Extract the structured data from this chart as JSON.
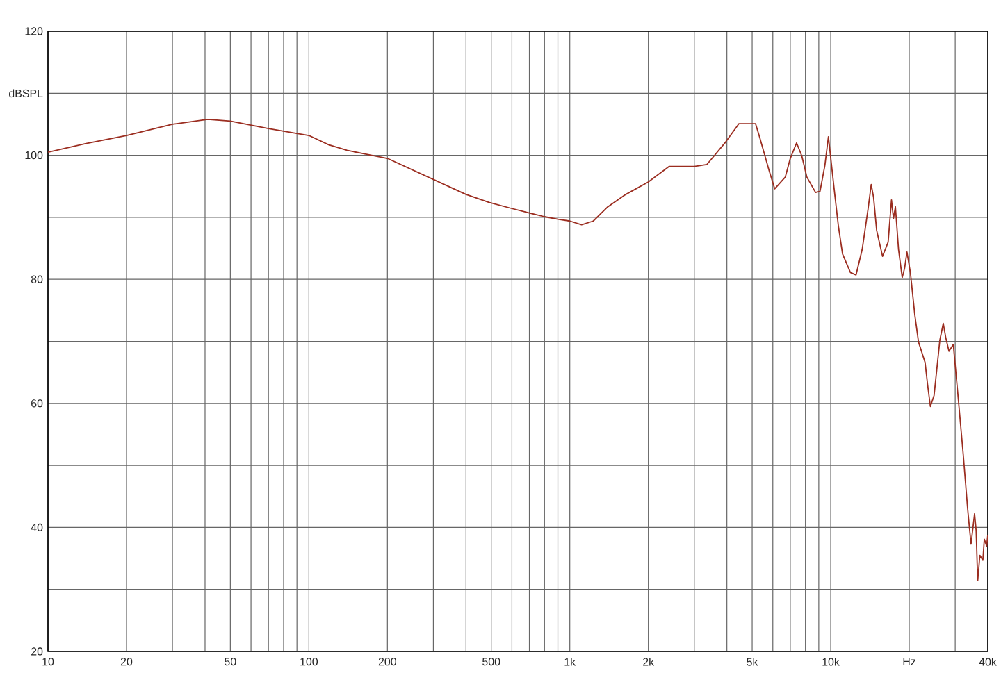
{
  "chart_data": {
    "type": "line",
    "log": "x",
    "grid": true,
    "color": "#9b2d20",
    "xlim": [
      10,
      40000
    ],
    "ylim": [
      20,
      120
    ],
    "xticks": [
      10,
      20,
      {
        "value": 30,
        "label": null
      },
      {
        "value": 40,
        "label": null
      },
      50,
      {
        "value": 60,
        "label": null
      },
      {
        "value": 70,
        "label": null
      },
      {
        "value": 80,
        "label": null
      },
      {
        "value": 90,
        "label": null
      },
      100,
      200,
      {
        "value": 300,
        "label": null
      },
      {
        "value": 400,
        "label": null
      },
      500,
      {
        "value": 600,
        "label": null
      },
      {
        "value": 700,
        "label": null
      },
      {
        "value": 800,
        "label": null
      },
      {
        "value": 900,
        "label": null
      },
      {
        "value": 1000,
        "label": "1k"
      },
      {
        "value": 2000,
        "label": "2k"
      },
      {
        "value": 3000,
        "label": null
      },
      {
        "value": 4000,
        "label": null
      },
      {
        "value": 5000,
        "label": "5k"
      },
      {
        "value": 6000,
        "label": null
      },
      {
        "value": 7000,
        "label": null
      },
      {
        "value": 8000,
        "label": null
      },
      {
        "value": 9000,
        "label": null
      },
      {
        "value": 10000,
        "label": "10k"
      },
      {
        "value": 20000,
        "label": "Hz"
      },
      {
        "value": 30000,
        "label": null
      },
      {
        "value": 40000,
        "label": "40k"
      }
    ],
    "yticks": [
      20,
      {
        "value": 30,
        "label": null
      },
      40,
      {
        "value": 50,
        "label": null
      },
      60,
      {
        "value": 70,
        "label": null
      },
      80,
      {
        "value": 90,
        "label": null
      },
      100,
      {
        "value": 110,
        "label": "dBSPL"
      },
      120
    ],
    "x": [
      10,
      14,
      20,
      30,
      41,
      50,
      70,
      100,
      119,
      140,
      160,
      200,
      300,
      400,
      490,
      590,
      700,
      800,
      900,
      1000,
      1110,
      1230,
      1390,
      1640,
      2000,
      2400,
      3000,
      3350,
      3950,
      4450,
      5150,
      5350,
      5800,
      6100,
      6700,
      7000,
      7400,
      7750,
      8100,
      8750,
      9100,
      9500,
      9800,
      10300,
      10700,
      11100,
      11900,
      12500,
      13200,
      13900,
      14300,
      14600,
      15000,
      15800,
      16600,
      17100,
      17400,
      17700,
      18200,
      18800,
      19200,
      19600,
      20200,
      21000,
      21700,
      23000,
      23500,
      24100,
      24900,
      26200,
      27000,
      27600,
      28400,
      29500,
      30700,
      32200,
      33500,
      34500,
      35600,
      36100,
      36600,
      37300,
      38300,
      38800,
      39600,
      40000
    ],
    "values": [
      100.5,
      101.9,
      103.2,
      105.0,
      105.8,
      105.5,
      104.3,
      103.2,
      101.7,
      100.8,
      100.3,
      99.5,
      96.1,
      93.7,
      92.4,
      91.5,
      90.7,
      90.1,
      89.7,
      89.4,
      88.8,
      89.4,
      91.6,
      93.7,
      95.7,
      98.2,
      98.2,
      98.5,
      102.1,
      105.1,
      105.1,
      102.8,
      97.6,
      94.6,
      96.5,
      99.5,
      102.0,
      99.9,
      96.5,
      94.0,
      94.2,
      98.4,
      103.0,
      94.7,
      88.6,
      84.1,
      81.1,
      80.7,
      84.8,
      91.3,
      95.3,
      93.2,
      87.9,
      83.7,
      86.0,
      92.8,
      89.8,
      91.7,
      84.8,
      80.3,
      81.8,
      84.4,
      81.1,
      74.3,
      69.9,
      66.6,
      63.1,
      59.5,
      61.3,
      70.2,
      72.9,
      70.6,
      68.4,
      69.5,
      61.6,
      51.8,
      42.9,
      37.3,
      42.2,
      39.5,
      31.4,
      35.5,
      34.7,
      38.1,
      37.0,
      38.8
    ]
  }
}
